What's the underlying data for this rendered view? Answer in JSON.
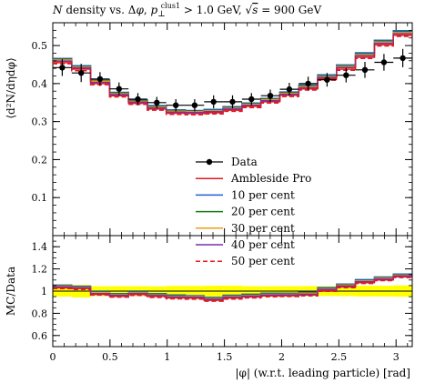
{
  "chart_data": {
    "type": "line",
    "title_parts": {
      "n_italic": "N",
      "main": " density vs. Δ",
      "phi_italic": "φ",
      "comma": ", ",
      "p_italic": "p",
      "p_sub": "⊥",
      "p_sup": "clus1",
      "cut": " > 1.0 GeV, ",
      "sqrt_sym": "√",
      "s_italic": "s",
      "energy": " = 900 GeV"
    },
    "ylabel": "⟨d²N/dηdφ⟩",
    "ylabel_ratio": "MC/Data",
    "xlabel": "|φ| (w.r.t. leading particle) [rad]",
    "xlim": [
      0,
      3.14159
    ],
    "ylim": [
      0,
      0.56
    ],
    "ylim_ratio": [
      0.5,
      1.5
    ],
    "x_ticks": [
      "0",
      "0.5",
      "1",
      "1.5",
      "2",
      "2.5",
      "3"
    ],
    "y_ticks": [
      "0.1",
      "0.2",
      "0.3",
      "0.4",
      "0.5"
    ],
    "y_ticks_ratio": [
      "0.6",
      "0.8",
      "1",
      "1.2",
      "1.4"
    ],
    "bin_edges": [
      0,
      0.16535,
      0.33069,
      0.49604,
      0.66139,
      0.82673,
      0.99208,
      1.15743,
      1.32277,
      1.48812,
      1.65347,
      1.81881,
      1.98416,
      2.14951,
      2.31485,
      2.4802,
      2.64555,
      2.81089,
      2.97624,
      3.14159
    ],
    "data": {
      "name": "Data",
      "x": [
        0.0827,
        0.248,
        0.413,
        0.579,
        0.744,
        0.909,
        1.075,
        1.24,
        1.405,
        1.571,
        1.736,
        1.901,
        2.067,
        2.232,
        2.397,
        2.563,
        2.728,
        2.894,
        3.059
      ],
      "y": [
        0.442,
        0.428,
        0.412,
        0.386,
        0.359,
        0.35,
        0.343,
        0.343,
        0.352,
        0.352,
        0.359,
        0.368,
        0.385,
        0.4,
        0.41,
        0.422,
        0.436,
        0.456,
        0.467
      ],
      "err": [
        0.022,
        0.024,
        0.018,
        0.017,
        0.016,
        0.015,
        0.016,
        0.016,
        0.017,
        0.017,
        0.016,
        0.016,
        0.017,
        0.018,
        0.018,
        0.019,
        0.021,
        0.022,
        0.024
      ]
    },
    "series": [
      {
        "name": "Ambleside Pro",
        "color": "#e41a1c",
        "dash": "solid",
        "values": [
          0.455,
          0.438,
          0.4,
          0.368,
          0.348,
          0.333,
          0.322,
          0.321,
          0.323,
          0.33,
          0.34,
          0.352,
          0.369,
          0.386,
          0.412,
          0.438,
          0.469,
          0.502,
          0.527
        ]
      },
      {
        "name": "10 per cent",
        "color": "#1f5fd6",
        "dash": "solid",
        "values": [
          0.466,
          0.447,
          0.41,
          0.377,
          0.357,
          0.342,
          0.331,
          0.329,
          0.332,
          0.339,
          0.349,
          0.361,
          0.378,
          0.396,
          0.423,
          0.449,
          0.481,
          0.514,
          0.539
        ]
      },
      {
        "name": "20 per cent",
        "color": "#1a7a1a",
        "dash": "solid",
        "values": [
          0.464,
          0.445,
          0.408,
          0.375,
          0.355,
          0.34,
          0.329,
          0.327,
          0.33,
          0.337,
          0.347,
          0.359,
          0.376,
          0.394,
          0.42,
          0.447,
          0.478,
          0.511,
          0.536
        ]
      },
      {
        "name": "30 per cent",
        "color": "#f29b18",
        "dash": "solid",
        "values": [
          0.462,
          0.443,
          0.406,
          0.373,
          0.353,
          0.338,
          0.327,
          0.326,
          0.328,
          0.335,
          0.345,
          0.357,
          0.374,
          0.392,
          0.418,
          0.445,
          0.476,
          0.509,
          0.534
        ]
      },
      {
        "name": "40 per cent",
        "color": "#7b2fa5",
        "dash": "solid",
        "values": [
          0.459,
          0.441,
          0.403,
          0.371,
          0.351,
          0.336,
          0.325,
          0.324,
          0.326,
          0.333,
          0.343,
          0.355,
          0.372,
          0.389,
          0.416,
          0.442,
          0.473,
          0.506,
          0.531
        ]
      },
      {
        "name": "50 per cent",
        "color": "#e41a1c",
        "dash": "dashed",
        "values": [
          0.452,
          0.434,
          0.397,
          0.365,
          0.345,
          0.33,
          0.319,
          0.318,
          0.32,
          0.327,
          0.337,
          0.349,
          0.366,
          0.383,
          0.409,
          0.435,
          0.466,
          0.499,
          0.524
        ]
      }
    ],
    "ratio_band_color": "#ffff00",
    "grid": false,
    "legend_position": "center"
  }
}
